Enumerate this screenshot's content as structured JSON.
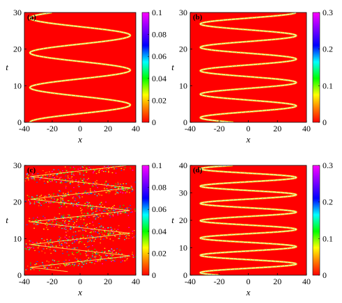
{
  "chart_data": [
    {
      "type": "heatmap",
      "panel_label": "(a)",
      "xlabel": "x",
      "ylabel": "t",
      "xlim": [
        -40,
        40
      ],
      "ylim": [
        0,
        30
      ],
      "xticks": [
        "-40",
        "-20",
        "0",
        "20",
        "40"
      ],
      "yticks": [
        "0",
        "10",
        "20",
        "30"
      ],
      "colorbar": {
        "min": 0,
        "max": 0.1,
        "ticks": [
          "0",
          "0.02",
          "0.04",
          "0.06",
          "0.08",
          "0.1"
        ]
      },
      "pattern": {
        "shape": "sine",
        "amplitude": 36,
        "period": 9.5,
        "phase": 0.75,
        "style": "clean"
      }
    },
    {
      "type": "heatmap",
      "panel_label": "(b)",
      "xlabel": "x",
      "ylabel": "t",
      "xlim": [
        -40,
        40
      ],
      "ylim": [
        0,
        30
      ],
      "xticks": [
        "-40",
        "-20",
        "0",
        "20",
        "40"
      ],
      "yticks": [
        "0",
        "10",
        "20",
        "30"
      ],
      "colorbar": {
        "min": 0,
        "max": 0.3,
        "ticks": [
          "0",
          "0.1",
          "0.2",
          "0.3"
        ]
      },
      "pattern": {
        "shape": "sine",
        "amplitude": 33,
        "period": 6.4,
        "phase": 0.55,
        "style": "clean"
      }
    },
    {
      "type": "heatmap",
      "panel_label": "(c)",
      "xlabel": "x",
      "ylabel": "t",
      "xlim": [
        -40,
        40
      ],
      "ylim": [
        0,
        30
      ],
      "xticks": [
        "-40",
        "-20",
        "0",
        "20",
        "40"
      ],
      "yticks": [
        "0",
        "10",
        "20",
        "30"
      ],
      "colorbar": {
        "min": 0,
        "max": 0.1,
        "ticks": [
          "0",
          "0.02",
          "0.04",
          "0.06",
          "0.08",
          "0.1"
        ]
      },
      "pattern": {
        "shape": "zigzag",
        "amplitude": 36,
        "period": 6.2,
        "phase": 0.65,
        "style": "turbulent"
      }
    },
    {
      "type": "heatmap",
      "panel_label": "(d)",
      "xlabel": "x",
      "ylabel": "t",
      "xlim": [
        -40,
        40
      ],
      "ylim": [
        0,
        40
      ],
      "xticks": [
        "-40",
        "-20",
        "0",
        "20",
        "40"
      ],
      "yticks": [
        "0",
        "10",
        "20",
        "30",
        "40"
      ],
      "colorbar": {
        "min": 0,
        "max": 0.3,
        "ticks": [
          "0",
          "0.1",
          "0.2",
          "0.3"
        ]
      },
      "pattern": {
        "shape": "sine",
        "amplitude": 33,
        "period": 6.3,
        "phase": 0.6,
        "style": "clean"
      }
    }
  ],
  "colors": {
    "background_field": "#ff0000",
    "ridge": "#ffd000"
  }
}
